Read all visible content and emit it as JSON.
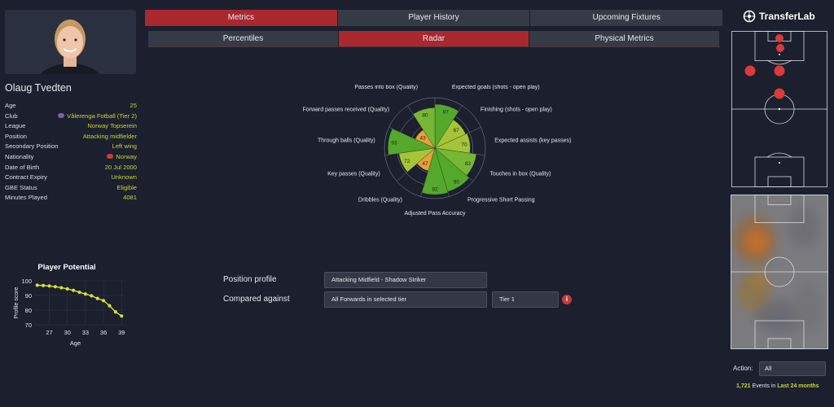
{
  "player": {
    "name": "Olaug Tvedten",
    "info": [
      {
        "key": "Age",
        "value": "25"
      },
      {
        "key": "Club",
        "value": "Vålerenga Fotball (Tier 2)",
        "badge_color": "#7b5fa8"
      },
      {
        "key": "League",
        "value": "Norway Topserein"
      },
      {
        "key": "Position",
        "value": "Attacking midfielder"
      },
      {
        "key": "Secondary Position",
        "value": "Left wing"
      },
      {
        "key": "Nationality",
        "value": "Norway",
        "badge_color": "#cc3b3b"
      },
      {
        "key": "Date of Birth",
        "value": "20 Jul 2000"
      },
      {
        "key": "Contract Expiry",
        "value": "Unknown"
      },
      {
        "key": "GBE Status",
        "value": "Eligible"
      },
      {
        "key": "Minutes Played",
        "value": "4081"
      }
    ]
  },
  "tabs_main": [
    "Metrics",
    "Player History",
    "Upcoming Fixtures"
  ],
  "tabs_sub": [
    "Percentiles",
    "Radar",
    "Physical Metrics"
  ],
  "profile": {
    "position_label": "Position profile",
    "position_value": "Attacking Midfield - Shadow Striker",
    "compared_label": "Compared against",
    "compared_value": "All Forwards in selected tier",
    "tier_value": "Tier 1"
  },
  "brand": {
    "name": "TransferLab"
  },
  "action": {
    "label": "Action:",
    "value": "All"
  },
  "events": {
    "count": "1,721",
    "text": "Events in",
    "period": "Last 24 months"
  },
  "colors": {
    "accent": "#a8282e",
    "highlight": "#c9d62f",
    "green": "#6cb42e",
    "orange": "#e8a03a"
  },
  "chart_data": [
    {
      "type": "line",
      "title": "Player Potential",
      "xlabel": "Age",
      "ylabel": "Profile score",
      "x": [
        25,
        26,
        27,
        28,
        29,
        30,
        31,
        32,
        33,
        34,
        35,
        36,
        37,
        38,
        39
      ],
      "values": [
        97,
        96.8,
        96.5,
        96,
        95.3,
        94.5,
        93.5,
        92.2,
        91,
        89.8,
        88,
        86.5,
        83,
        78.8,
        76
      ],
      "xticks": [
        "27",
        "30",
        "33",
        "36",
        "39"
      ],
      "yticks": [
        "70",
        "80",
        "90",
        "100"
      ],
      "xlim": [
        24.5,
        39.5
      ],
      "ylim": [
        70,
        100
      ]
    },
    {
      "type": "radar",
      "categories": [
        "Expected goals (shots - open play)",
        "Finishing (shots - open play)",
        "Expected assists (key passes)",
        "Touches in box (Quality)",
        "Progressive Short Passing",
        "Adjusted Pass Accuracy",
        "Dribbles (Quality)",
        "Key passes (Quality)",
        "Through balls (Quality)",
        "Forward passes received (Quality)",
        "Passes into box (Quality)"
      ],
      "values": [
        87,
        67,
        70,
        83,
        90,
        92,
        47,
        72,
        93,
        43,
        80
      ],
      "ylim": [
        0,
        100
      ]
    }
  ]
}
